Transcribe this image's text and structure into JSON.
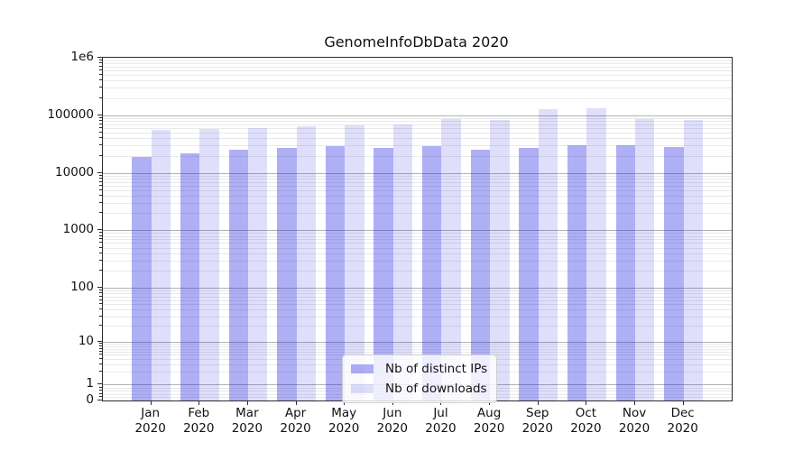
{
  "figure": {
    "title": "GenomeInfoDbData 2020"
  },
  "chart_data": {
    "type": "bar",
    "title": "GenomeInfoDbData 2020",
    "yscale": "symlog",
    "ylim": [
      0,
      1000000
    ],
    "grid": true,
    "legend_position": "lower center",
    "categories": [
      "Jan",
      "Feb",
      "Mar",
      "Apr",
      "May",
      "Jun",
      "Jul",
      "Aug",
      "Sep",
      "Oct",
      "Nov",
      "Dec"
    ],
    "year_label": "2020",
    "series": [
      {
        "name": "Nb of distinct IPs",
        "color": "rgba(25,25,230,0.35)",
        "values": [
          19000,
          21700,
          25300,
          27500,
          29600,
          27500,
          28900,
          25000,
          27500,
          30300,
          30300,
          28500
        ]
      },
      {
        "name": "Nb of downloads",
        "color": "rgba(25,25,230,0.14)",
        "values": [
          55500,
          58100,
          61000,
          64800,
          67200,
          69700,
          85600,
          83500,
          130000,
          135000,
          87500,
          84400
        ]
      }
    ],
    "yticks": [
      {
        "label": "1e6",
        "value": 1000000
      },
      {
        "label": "100000",
        "value": 100000
      },
      {
        "label": "10000",
        "value": 10000
      },
      {
        "label": "1000",
        "value": 1000
      },
      {
        "label": "100",
        "value": 100
      },
      {
        "label": "10",
        "value": 10
      },
      {
        "label": "1",
        "value": 1
      },
      {
        "label": "0",
        "value": 0
      }
    ],
    "colors": {
      "major_grid": "#b2b2b2",
      "minor_grid": "#e9e9e9",
      "spine": "#2b2b2b"
    }
  }
}
